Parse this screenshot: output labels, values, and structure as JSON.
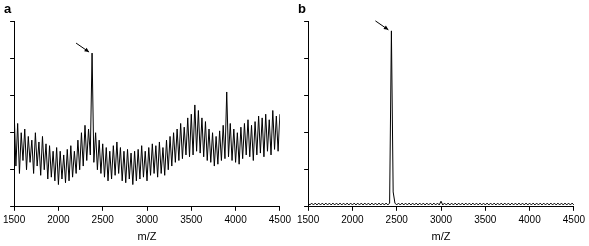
{
  "chart_data": [
    {
      "type": "line",
      "title": "a",
      "x": [
        1500,
        1520,
        1540,
        1560,
        1580,
        1600,
        1620,
        1640,
        1660,
        1680,
        1700,
        1720,
        1740,
        1760,
        1780,
        1800,
        1820,
        1840,
        1860,
        1880,
        1900,
        1920,
        1940,
        1960,
        1980,
        2000,
        2020,
        2040,
        2060,
        2080,
        2100,
        2120,
        2140,
        2160,
        2180,
        2200,
        2220,
        2240,
        2260,
        2280,
        2300,
        2320,
        2340,
        2360,
        2380,
        2400,
        2420,
        2440,
        2460,
        2480,
        2500,
        2520,
        2540,
        2560,
        2580,
        2600,
        2620,
        2640,
        2660,
        2680,
        2700,
        2720,
        2740,
        2760,
        2780,
        2800,
        2820,
        2840,
        2860,
        2880,
        2900,
        2920,
        2940,
        2960,
        2980,
        3000,
        3020,
        3040,
        3060,
        3080,
        3100,
        3120,
        3140,
        3160,
        3180,
        3200,
        3220,
        3240,
        3260,
        3280,
        3300,
        3320,
        3340,
        3360,
        3380,
        3400,
        3420,
        3440,
        3460,
        3480,
        3500,
        3520,
        3540,
        3560,
        3580,
        3600,
        3620,
        3640,
        3660,
        3680,
        3700,
        3720,
        3740,
        3760,
        3780,
        3800,
        3820,
        3840,
        3860,
        3880,
        3900,
        3920,
        3940,
        3960,
        3980,
        4000,
        4020,
        4040,
        4060,
        4080,
        4100,
        4120,
        4140,
        4160,
        4180,
        4200,
        4220,
        4240,
        4260,
        4280,
        4300,
        4320,
        4340,
        4360,
        4380,
        4400,
        4420,
        4440,
        4460,
        4480,
        4500
      ],
      "values": [
        52,
        22,
        45,
        18,
        40,
        25,
        42,
        20,
        38,
        24,
        36,
        18,
        40,
        22,
        35,
        17,
        38,
        20,
        34,
        15,
        33,
        16,
        30,
        14,
        32,
        12,
        30,
        15,
        28,
        13,
        31,
        14,
        33,
        16,
        30,
        18,
        36,
        20,
        40,
        22,
        44,
        25,
        42,
        28,
        83,
        24,
        40,
        20,
        36,
        18,
        34,
        16,
        32,
        14,
        30,
        15,
        33,
        17,
        35,
        18,
        32,
        14,
        30,
        13,
        31,
        15,
        29,
        12,
        30,
        14,
        31,
        15,
        33,
        16,
        30,
        14,
        32,
        17,
        34,
        18,
        33,
        16,
        35,
        18,
        32,
        17,
        36,
        20,
        38,
        22,
        40,
        24,
        42,
        25,
        45,
        26,
        43,
        28,
        48,
        27,
        50,
        28,
        55,
        30,
        52,
        29,
        48,
        27,
        46,
        25,
        42,
        24,
        40,
        22,
        38,
        23,
        41,
        25,
        44,
        26,
        62,
        27,
        45,
        25,
        42,
        24,
        40,
        23,
        43,
        26,
        45,
        28,
        47,
        27,
        44,
        25,
        46,
        28,
        49,
        29,
        48,
        27,
        50,
        30,
        47,
        28,
        52,
        31,
        49,
        30,
        50
      ],
      "color": "#000000",
      "x_label": "m/Z",
      "xlim": [
        1500,
        4500
      ],
      "xticks": [
        1500,
        2000,
        2500,
        3000,
        3500,
        4000,
        4500
      ],
      "ylim": [
        0,
        100
      ],
      "yticks": [
        0,
        20,
        40,
        60,
        80,
        100
      ],
      "grid": false,
      "tick_labels": "x"
    },
    {
      "type": "line",
      "title": "b",
      "x": [
        1500,
        1520,
        1540,
        1560,
        1580,
        1600,
        1620,
        1640,
        1660,
        1680,
        1700,
        1720,
        1740,
        1760,
        1780,
        1800,
        1820,
        1840,
        1860,
        1880,
        1900,
        1920,
        1940,
        1960,
        1980,
        2000,
        2020,
        2040,
        2060,
        2080,
        2100,
        2120,
        2140,
        2160,
        2180,
        2200,
        2220,
        2240,
        2260,
        2280,
        2300,
        2320,
        2340,
        2360,
        2380,
        2400,
        2420,
        2440,
        2460,
        2480,
        2500,
        2520,
        2540,
        2560,
        2580,
        2600,
        2620,
        2640,
        2660,
        2680,
        2700,
        2720,
        2740,
        2760,
        2780,
        2800,
        2820,
        2840,
        2860,
        2880,
        2900,
        2920,
        2940,
        2960,
        2980,
        3000,
        3020,
        3040,
        3060,
        3080,
        3100,
        3120,
        3140,
        3160,
        3180,
        3200,
        3220,
        3240,
        3260,
        3280,
        3300,
        3320,
        3340,
        3360,
        3380,
        3400,
        3420,
        3440,
        3460,
        3480,
        3500,
        3520,
        3540,
        3560,
        3580,
        3600,
        3620,
        3640,
        3660,
        3680,
        3700,
        3720,
        3740,
        3760,
        3780,
        3800,
        3820,
        3840,
        3860,
        3880,
        3900,
        3920,
        3940,
        3960,
        3980,
        4000,
        4020,
        4040,
        4060,
        4080,
        4100,
        4120,
        4140,
        4160,
        4180,
        4200,
        4220,
        4240,
        4260,
        4280,
        4300,
        4320,
        4340,
        4360,
        4380,
        4400,
        4420,
        4440,
        4460,
        4480,
        4500
      ],
      "values": [
        2,
        1,
        2,
        1,
        2,
        1,
        2,
        1,
        2,
        1,
        2,
        1,
        2,
        1,
        2,
        1,
        2,
        1,
        2,
        1,
        2,
        1,
        2,
        1,
        2,
        1,
        2,
        1,
        2,
        1,
        2,
        1,
        2,
        1,
        2,
        1,
        2,
        1,
        2,
        1,
        2,
        1,
        2,
        1,
        2,
        1,
        2,
        95,
        8,
        2,
        1,
        2,
        1,
        2,
        1,
        2,
        1,
        2,
        1,
        2,
        1,
        2,
        1,
        2,
        1,
        2,
        1,
        2,
        1,
        2,
        1,
        2,
        1,
        2,
        1,
        3,
        1,
        2,
        1,
        2,
        1,
        2,
        1,
        2,
        1,
        2,
        1,
        2,
        1,
        2,
        1,
        2,
        1,
        2,
        1,
        2,
        1,
        2,
        1,
        2,
        1,
        2,
        1,
        2,
        1,
        2,
        1,
        2,
        1,
        2,
        1,
        2,
        1,
        2,
        1,
        2,
        1,
        2,
        1,
        2,
        1,
        2,
        1,
        2,
        1,
        2,
        1,
        2,
        1,
        2,
        1,
        2,
        1,
        2,
        1,
        2,
        1,
        2,
        1,
        2,
        1,
        2,
        1,
        2,
        1,
        2,
        1,
        2,
        1,
        2,
        1
      ],
      "color": "#000000",
      "x_label": "m/Z",
      "xlim": [
        1500,
        4500
      ],
      "xticks": [
        1500,
        2000,
        2500,
        3000,
        3500,
        4000,
        4500
      ],
      "ylim": [
        0,
        100
      ],
      "yticks": [
        0,
        20,
        40,
        60,
        80,
        100
      ],
      "grid": false,
      "tick_labels": "x"
    }
  ]
}
